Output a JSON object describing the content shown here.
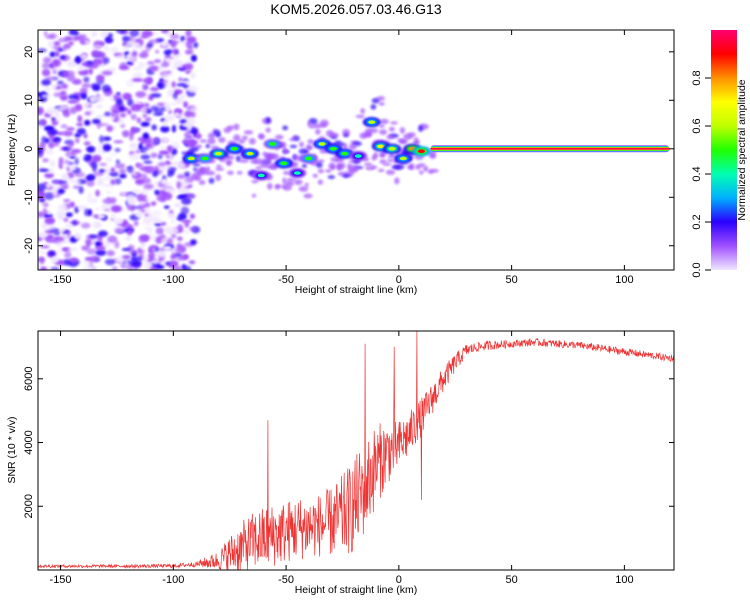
{
  "title": "KOM5.2026.057.03.46.G13",
  "chart_data": [
    {
      "type": "heatmap",
      "title": "KOM5.2026.057.03.46.G13",
      "xlabel": "Height of straight line (km)",
      "ylabel": "Frequency (Hz)",
      "xlim": [
        -160,
        122
      ],
      "ylim": [
        -25,
        24.5
      ],
      "xticks": [
        -150,
        -100,
        -50,
        0,
        50,
        100
      ],
      "xtick_labels": [
        "-150",
        "-100",
        "-50",
        "0",
        "50",
        "100"
      ],
      "yticks": [
        -20,
        -10,
        0,
        10,
        20
      ],
      "ytick_labels": [
        "-20",
        "-10",
        "0",
        "10",
        "20"
      ],
      "noise_region_x": [
        -160,
        -95
      ],
      "carrier": {
        "start_x": 14,
        "end_x": 120,
        "frequency_hz": 0,
        "amplitude": 0.97
      },
      "blobs": [
        {
          "x": -92,
          "y": -2,
          "amp": 0.55
        },
        {
          "x": -86,
          "y": -2,
          "amp": 0.45
        },
        {
          "x": -80,
          "y": -1,
          "amp": 0.6
        },
        {
          "x": -73,
          "y": 0,
          "amp": 0.5
        },
        {
          "x": -66,
          "y": -1,
          "amp": 0.55
        },
        {
          "x": -61,
          "y": -5.5,
          "amp": 0.4
        },
        {
          "x": -56,
          "y": 1,
          "amp": 0.45
        },
        {
          "x": -51,
          "y": -3,
          "amp": 0.5
        },
        {
          "x": -45,
          "y": -5,
          "amp": 0.35
        },
        {
          "x": -40,
          "y": -2,
          "amp": 0.45
        },
        {
          "x": -34,
          "y": 1,
          "amp": 0.55
        },
        {
          "x": -29,
          "y": 0,
          "amp": 0.5
        },
        {
          "x": -24,
          "y": -1,
          "amp": 0.5
        },
        {
          "x": -18,
          "y": -1.5,
          "amp": 0.4
        },
        {
          "x": -12,
          "y": 5.5,
          "amp": 0.55
        },
        {
          "x": -8,
          "y": 0.5,
          "amp": 0.65
        },
        {
          "x": -3,
          "y": 0,
          "amp": 0.6
        },
        {
          "x": 2,
          "y": -2,
          "amp": 0.55
        },
        {
          "x": 6,
          "y": 0,
          "amp": 0.75
        },
        {
          "x": 10,
          "y": -0.5,
          "amp": 0.9
        }
      ],
      "colorbar": {
        "label": "Normalized spectral amplitude",
        "range": [
          0,
          1
        ],
        "ticks": [
          0.0,
          0.2,
          0.4,
          0.6,
          0.8
        ],
        "tick_labels": [
          "0.0",
          "0.2",
          "0.4",
          "0.6",
          "0.8"
        ],
        "colors": [
          "#f0e6ff",
          "#a050ff",
          "#2a00ff",
          "#00b0ff",
          "#00ffb0",
          "#20ff00",
          "#c0ff00",
          "#ffff00",
          "#ff9000",
          "#ff0000",
          "#ff0070"
        ]
      }
    },
    {
      "type": "line",
      "xlabel": "Height of straight line (km)",
      "ylabel": "SNR (10 * v/v)",
      "xlim": [
        -160,
        122
      ],
      "ylim": [
        0,
        7500
      ],
      "xticks": [
        -150,
        -100,
        -50,
        0,
        50,
        100
      ],
      "xtick_labels": [
        "-150",
        "-100",
        "-50",
        "0",
        "50",
        "100"
      ],
      "yticks": [
        2000,
        4000,
        6000
      ],
      "ytick_labels": [
        "2000",
        "4000",
        "6000"
      ],
      "line_color": "#ee3333",
      "series": [
        {
          "name": "SNR",
          "x": [
            -160,
            -140,
            -120,
            -100,
            -90,
            -80,
            -75,
            -70,
            -65,
            -60,
            -55,
            -50,
            -45,
            -40,
            -35,
            -30,
            -25,
            -20,
            -15,
            -10,
            -5,
            0,
            5,
            10,
            15,
            20,
            25,
            30,
            35,
            40,
            50,
            60,
            70,
            80,
            90,
            100,
            110,
            120
          ],
          "mean": [
            120,
            120,
            120,
            130,
            180,
            300,
            500,
            700,
            900,
            1000,
            1100,
            1200,
            1300,
            1350,
            1400,
            1500,
            1700,
            2000,
            2600,
            3300,
            3700,
            3900,
            4300,
            4800,
            5400,
            6000,
            6500,
            6900,
            7000,
            7050,
            7100,
            7150,
            7100,
            7050,
            6950,
            6850,
            6750,
            6650
          ],
          "spread": [
            50,
            50,
            50,
            60,
            80,
            300,
            600,
            800,
            900,
            1000,
            1000,
            1000,
            1000,
            1000,
            1000,
            1100,
            1300,
            1500,
            1500,
            1300,
            1000,
            800,
            700,
            600,
            500,
            400,
            300,
            200,
            150,
            150,
            120,
            120,
            120,
            120,
            120,
            120,
            110,
            110
          ]
        }
      ],
      "spikes": [
        {
          "x": -58,
          "y": 4700
        },
        {
          "x": -15,
          "y": 7100
        },
        {
          "x": 8,
          "y": 7500
        },
        {
          "x": -2,
          "y": 7000
        },
        {
          "x": 10,
          "y": 2200
        }
      ]
    }
  ]
}
